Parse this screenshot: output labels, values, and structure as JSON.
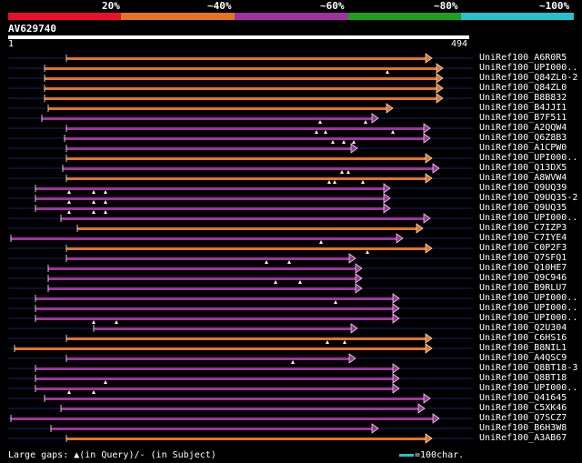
{
  "legend": {
    "labels": [
      "20%",
      "~40%",
      "~60%",
      "~80%",
      "~100%"
    ],
    "colors": [
      "#e8102a",
      "#e57320",
      "#a032a0",
      "#1ea01e",
      "#22c3cd"
    ]
  },
  "query": {
    "id": "AV629740",
    "start": "1",
    "end": "494"
  },
  "colors": {
    "orange": "#e57320",
    "purple": "#a032a0",
    "gap": "#ffffcc"
  },
  "hits": [
    {
      "label": "UniRef100_A6R0R5",
      "color": "orange",
      "start": 73,
      "end": 475,
      "gaps": []
    },
    {
      "label": "UniRef100_UPI000..",
      "color": "orange",
      "start": 49,
      "end": 487,
      "gaps": [
        426
      ]
    },
    {
      "label": "UniRef100_Q84ZL0-2",
      "color": "orange",
      "start": 49,
      "end": 487,
      "gaps": []
    },
    {
      "label": "UniRef100_Q84ZL0",
      "color": "orange",
      "start": 49,
      "end": 487,
      "gaps": []
    },
    {
      "label": "UniRef100_B8B832",
      "color": "orange",
      "start": 49,
      "end": 487,
      "gaps": []
    },
    {
      "label": "UniRef100_B4JJI1",
      "color": "orange",
      "start": 53,
      "end": 432,
      "gaps": []
    },
    {
      "label": "UniRef100_B7F511",
      "color": "purple",
      "start": 46,
      "end": 416,
      "gaps": [
        352,
        402
      ]
    },
    {
      "label": "UniRef100_A2QQW4",
      "color": "purple",
      "start": 73,
      "end": 473,
      "gaps": [
        348,
        358,
        432
      ]
    },
    {
      "label": "UniRef100_Q6Z8B3",
      "color": "purple",
      "start": 71,
      "end": 473,
      "gaps": [
        366,
        378,
        389
      ]
    },
    {
      "label": "UniRef100_A1CPW0",
      "color": "purple",
      "start": 73,
      "end": 393,
      "gaps": []
    },
    {
      "label": "UniRef100_UPI000..",
      "color": "orange",
      "start": 73,
      "end": 475,
      "gaps": []
    },
    {
      "label": "UniRef100_Q13DX5",
      "color": "purple",
      "start": 69,
      "end": 483,
      "gaps": [
        376,
        383
      ]
    },
    {
      "label": "UniRef100_A8WVW4",
      "color": "orange",
      "start": 73,
      "end": 475,
      "gaps": [
        362,
        368,
        399
      ]
    },
    {
      "label": "UniRef100_Q9UQ39",
      "color": "purple",
      "start": 39,
      "end": 429,
      "gaps": [
        76,
        103,
        116
      ]
    },
    {
      "label": "UniRef100_Q9UQ35-2",
      "color": "purple",
      "start": 39,
      "end": 429,
      "gaps": [
        76,
        103,
        116
      ]
    },
    {
      "label": "UniRef100_Q9UQ35",
      "color": "purple",
      "start": 39,
      "end": 429,
      "gaps": [
        76,
        103,
        116
      ]
    },
    {
      "label": "UniRef100_UPI000..",
      "color": "purple",
      "start": 67,
      "end": 473,
      "gaps": []
    },
    {
      "label": "UniRef100_C7IZP3",
      "color": "orange",
      "start": 85,
      "end": 465,
      "gaps": []
    },
    {
      "label": "UniRef100_C7IYE4",
      "color": "purple",
      "start": 12,
      "end": 443,
      "gaps": [
        353
      ]
    },
    {
      "label": "UniRef100_C0P2F3",
      "color": "orange",
      "start": 73,
      "end": 475,
      "gaps": [
        404
      ]
    },
    {
      "label": "UniRef100_Q7SFQ1",
      "color": "purple",
      "start": 73,
      "end": 391,
      "gaps": [
        293,
        318
      ]
    },
    {
      "label": "UniRef100_Q10HE7",
      "color": "purple",
      "start": 53,
      "end": 398,
      "gaps": []
    },
    {
      "label": "UniRef100_Q9C946",
      "color": "purple",
      "start": 53,
      "end": 398,
      "gaps": [
        303,
        330
      ]
    },
    {
      "label": "UniRef100_B9RLU7",
      "color": "purple",
      "start": 53,
      "end": 398,
      "gaps": []
    },
    {
      "label": "UniRef100_UPI000..",
      "color": "purple",
      "start": 39,
      "end": 439,
      "gaps": [
        369
      ]
    },
    {
      "label": "UniRef100_UPI000..",
      "color": "purple",
      "start": 39,
      "end": 439,
      "gaps": []
    },
    {
      "label": "UniRef100_UPI000..",
      "color": "purple",
      "start": 39,
      "end": 439,
      "gaps": [
        103,
        128
      ]
    },
    {
      "label": "UniRef100_Q2U304",
      "color": "purple",
      "start": 103,
      "end": 393,
      "gaps": []
    },
    {
      "label": "UniRef100_C6HS16",
      "color": "orange",
      "start": 73,
      "end": 475,
      "gaps": [
        360,
        379
      ]
    },
    {
      "label": "UniRef100_B8NIL1",
      "color": "orange",
      "start": 16,
      "end": 475,
      "gaps": []
    },
    {
      "label": "UniRef100_A4QSC9",
      "color": "purple",
      "start": 73,
      "end": 391,
      "gaps": [
        322
      ]
    },
    {
      "label": "UniRef100_Q8BT18-3",
      "color": "purple",
      "start": 39,
      "end": 439,
      "gaps": []
    },
    {
      "label": "UniRef100_Q8BT18",
      "color": "purple",
      "start": 39,
      "end": 439,
      "gaps": [
        116
      ]
    },
    {
      "label": "UniRef100_UPI000..",
      "color": "purple",
      "start": 39,
      "end": 439,
      "gaps": [
        76,
        103
      ]
    },
    {
      "label": "UniRef100_Q41645",
      "color": "purple",
      "start": 49,
      "end": 473,
      "gaps": []
    },
    {
      "label": "UniRef100_C5XK46",
      "color": "purple",
      "start": 67,
      "end": 467,
      "gaps": []
    },
    {
      "label": "UniRef100_Q7SCZ7",
      "color": "purple",
      "start": 12,
      "end": 483,
      "gaps": []
    },
    {
      "label": "UniRef100_B6H3W8",
      "color": "purple",
      "start": 56,
      "end": 416,
      "gaps": []
    },
    {
      "label": "UniRef100_A3AB67",
      "color": "orange",
      "start": 73,
      "end": 475,
      "gaps": []
    }
  ],
  "footer": {
    "gaps_legend": "Large gaps: ▲(in Query)/- (in Subject)",
    "scale_label": "=100char."
  }
}
